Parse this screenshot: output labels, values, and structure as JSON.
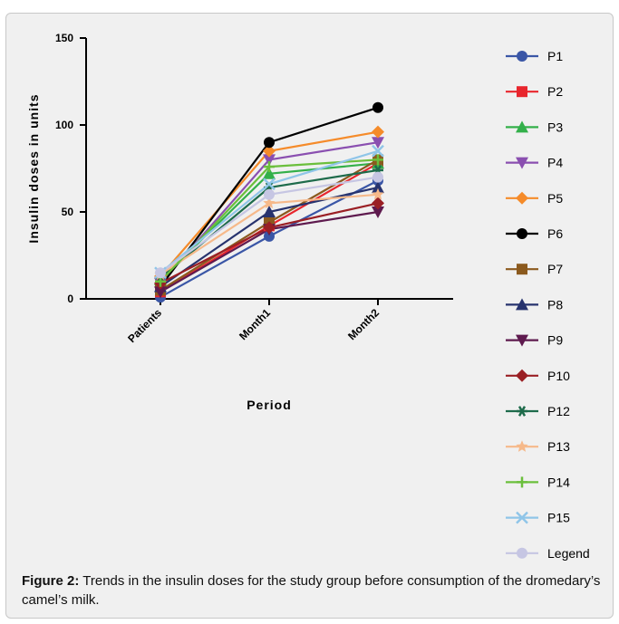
{
  "caption": {
    "label": "Figure 2:",
    "text": "Trends in the insulin doses for the study group before consumption of the dromedary’s camel’s milk."
  },
  "chart_data": {
    "type": "line",
    "title": "",
    "xlabel": "Period",
    "ylabel": "Insulin doses in units",
    "categories": [
      "Patients",
      "Month1",
      "Month2"
    ],
    "y_ticks": [
      "0",
      "50",
      "100",
      "150"
    ],
    "ylim": [
      0,
      150
    ],
    "grid": false,
    "legend_position": "right",
    "series": [
      {
        "name": "P1",
        "color": "#3a56a6",
        "marker": "circle",
        "values": [
          1,
          36,
          68
        ]
      },
      {
        "name": "P2",
        "color": "#e8262d",
        "marker": "square",
        "values": [
          4,
          42,
          78
        ]
      },
      {
        "name": "P3",
        "color": "#33b04a",
        "marker": "triangle-up",
        "values": [
          11,
          72,
          78
        ]
      },
      {
        "name": "P4",
        "color": "#8a4fb0",
        "marker": "triangle-down",
        "values": [
          9,
          80,
          90
        ]
      },
      {
        "name": "P5",
        "color": "#f58b2a",
        "marker": "diamond",
        "values": [
          13,
          85,
          96
        ]
      },
      {
        "name": "P6",
        "color": "#000000",
        "marker": "circle",
        "values": [
          7,
          90,
          110
        ]
      },
      {
        "name": "P7",
        "color": "#8b5a1e",
        "marker": "square",
        "values": [
          5,
          44,
          80
        ]
      },
      {
        "name": "P8",
        "color": "#27336e",
        "marker": "triangle-up",
        "values": [
          7,
          50,
          64
        ]
      },
      {
        "name": "P9",
        "color": "#5e1a4e",
        "marker": "triangle-down",
        "values": [
          4,
          40,
          50
        ]
      },
      {
        "name": "P10",
        "color": "#9a1f24",
        "marker": "diamond",
        "values": [
          9,
          41,
          55
        ]
      },
      {
        "name": "P12",
        "color": "#1e6b4b",
        "marker": "asterisk",
        "values": [
          12,
          64,
          74
        ]
      },
      {
        "name": "P13",
        "color": "#f6b98a",
        "marker": "star",
        "values": [
          14,
          55,
          60
        ]
      },
      {
        "name": "P14",
        "color": "#6bbf3c",
        "marker": "plus",
        "values": [
          10,
          76,
          80
        ]
      },
      {
        "name": "P15",
        "color": "#8fc5e8",
        "marker": "cross",
        "values": [
          15,
          66,
          85
        ]
      },
      {
        "name": "Legend",
        "color": "#c6c6e3",
        "marker": "circle",
        "values": [
          15,
          60,
          70
        ]
      }
    ]
  }
}
